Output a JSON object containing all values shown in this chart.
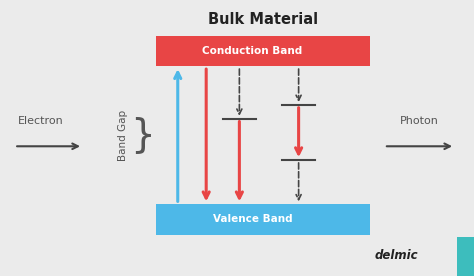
{
  "bg_color": "#ebebeb",
  "title": "Bulk Material",
  "title_fontsize": 10.5,
  "title_fontweight": "bold",
  "cb_color": "#e84545",
  "vb_color": "#4db8e8",
  "band_label_color": "white",
  "band_label_fontsize": 7.5,
  "cb_label": "Conduction Band",
  "vb_label": "Valence Band",
  "arrow_dark": "#444444",
  "arrow_red": "#e84545",
  "arrow_blue": "#4db8e8",
  "delmic_text": "delmic",
  "delmic_color": "#222222",
  "teal_color": "#3dbdbd",
  "electron_label": "Electron",
  "photon_label": "Photon",
  "band_gap_label": "Band Gap"
}
